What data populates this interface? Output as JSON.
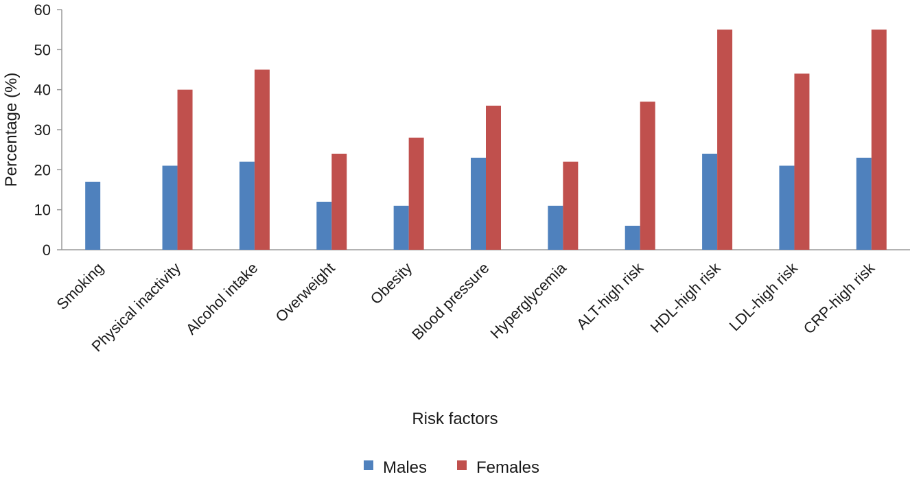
{
  "chart_data": {
    "type": "bar",
    "title": "",
    "xlabel": "Risk factors",
    "ylabel": "Percentage (%)",
    "ylim": [
      0,
      60
    ],
    "yticks": [
      0,
      10,
      20,
      30,
      40,
      50,
      60
    ],
    "grid": false,
    "legend_position": "bottom",
    "categories": [
      "Smoking",
      "Physical inactivity",
      "Alcohol intake",
      "Overweight",
      "Obesity",
      "Blood pressure",
      "Hyperglycemia",
      "ALT-high risk",
      "HDL-high risk",
      "LDL-high risk",
      "CRP-high risk"
    ],
    "series": [
      {
        "name": "Males",
        "color": "#4F81BD",
        "values": [
          17,
          21,
          22,
          12,
          11,
          23,
          11,
          6,
          24,
          21,
          23
        ]
      },
      {
        "name": "Females",
        "color": "#C0504D",
        "values": [
          0,
          40,
          45,
          24,
          28,
          36,
          22,
          37,
          55,
          44,
          55
        ]
      }
    ]
  }
}
